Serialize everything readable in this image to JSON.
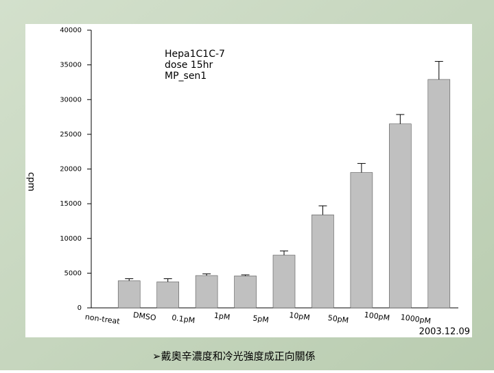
{
  "chart_data": {
    "type": "bar",
    "annotation": [
      "Hepa1C1C-7",
      "dose  15hr",
      "MP_sen1"
    ],
    "ylabel": "cpm",
    "categories": [
      "non-treat",
      "DMSO",
      "0.1pM",
      "1pM",
      "5pM",
      "10pM",
      "50pM",
      "100pM",
      "1000pM"
    ],
    "values": [
      3900,
      3750,
      4650,
      4600,
      7600,
      13400,
      19500,
      26500,
      32900
    ],
    "errors": [
      300,
      450,
      250,
      150,
      600,
      1300,
      1300,
      1350,
      2600
    ],
    "color": "#c0c0c0",
    "ylim": [
      0,
      40000
    ],
    "yticks": [
      0,
      5000,
      10000,
      15000,
      20000,
      25000,
      30000,
      35000,
      40000
    ],
    "grid": false,
    "date": "2003.12.09"
  },
  "caption": "➢戴奧辛濃度和冷光強度成正向關係"
}
